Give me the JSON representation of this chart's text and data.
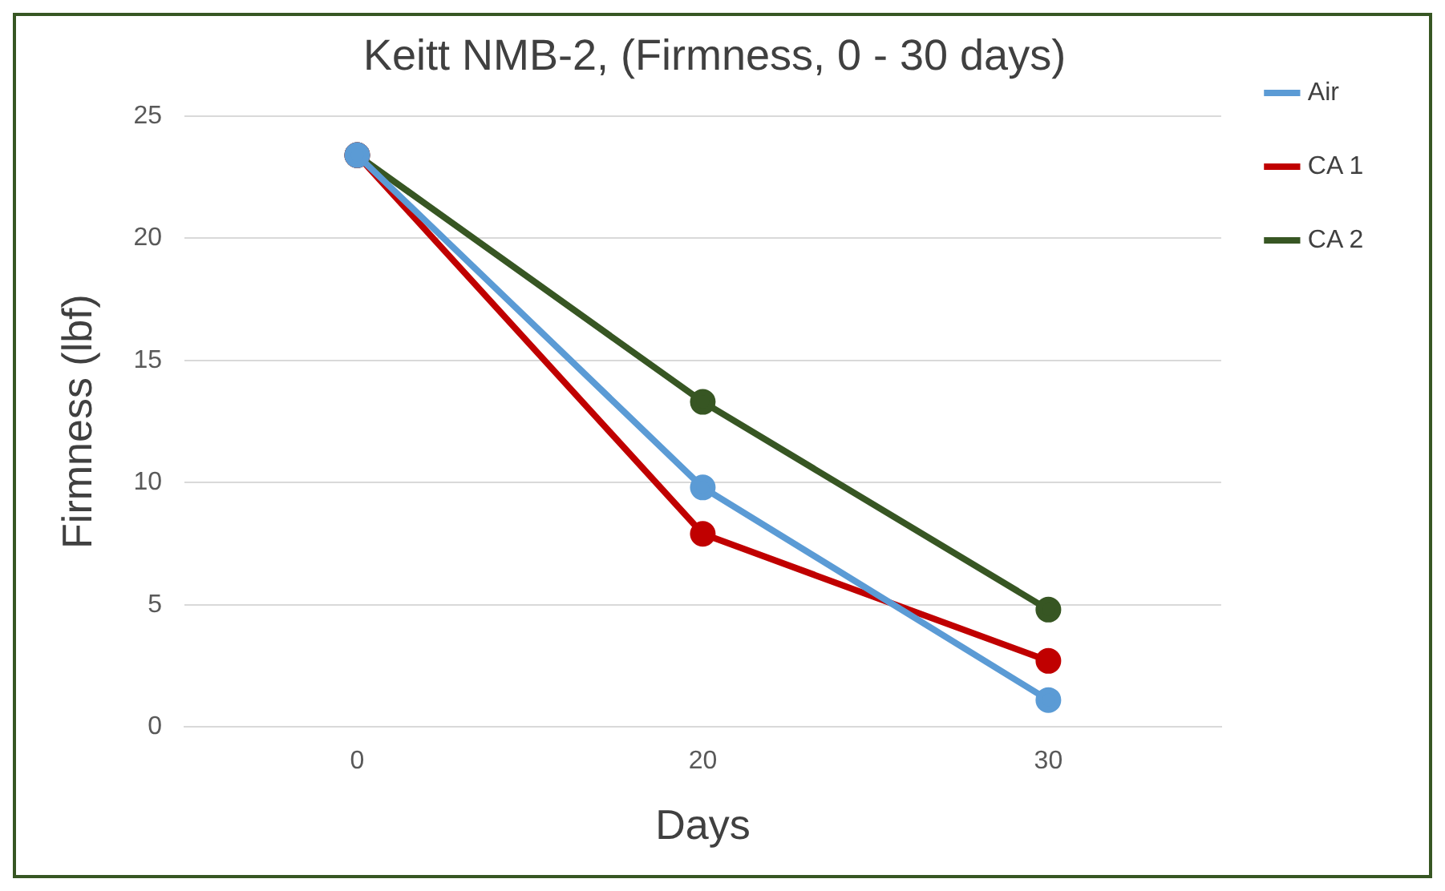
{
  "chart_data": {
    "type": "line",
    "title": "Keitt NMB-2, (Firmness, 0 - 30 days)",
    "xlabel": "Days",
    "ylabel": "Firmness (lbf)",
    "categories": [
      "0",
      "20",
      "30"
    ],
    "series": [
      {
        "name": "Air",
        "color": "#5b9bd5",
        "values": [
          23.4,
          9.8,
          1.1
        ]
      },
      {
        "name": "CA 1",
        "color": "#c00000",
        "values": [
          23.4,
          7.9,
          2.7
        ]
      },
      {
        "name": "CA 2",
        "color": "#375623",
        "values": [
          23.4,
          13.3,
          4.8
        ]
      }
    ],
    "ylim": [
      0,
      25
    ],
    "yticks": [
      0,
      5,
      10,
      15,
      20,
      25
    ],
    "grid": "y",
    "legend": "right",
    "marker": "circle",
    "line_style": "solid"
  }
}
